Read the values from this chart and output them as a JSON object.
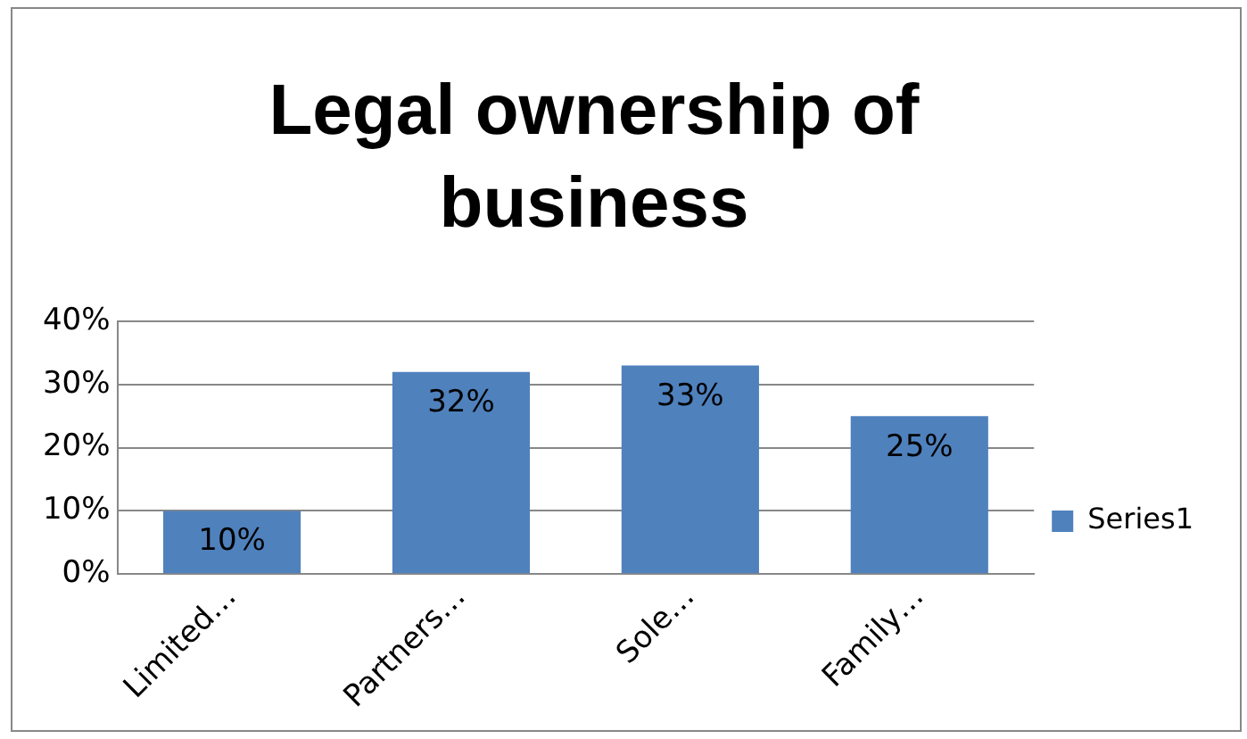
{
  "chart_data": {
    "type": "bar",
    "title": "Legal ownership of business",
    "categories": [
      "Limited…",
      "Partners…",
      "Sole…",
      "Family…"
    ],
    "series": [
      {
        "name": "Series1",
        "color": "#4f81bd",
        "values": [
          10,
          32,
          33,
          25
        ],
        "value_labels": [
          "10%",
          "32%",
          "33%",
          "25%"
        ]
      }
    ],
    "ylim": [
      0,
      40
    ],
    "yticks": [
      {
        "value": 0,
        "label": "0%"
      },
      {
        "value": 10,
        "label": "10%"
      },
      {
        "value": 20,
        "label": "20%"
      },
      {
        "value": 30,
        "label": "30%"
      },
      {
        "value": 40,
        "label": "40%"
      }
    ],
    "grid": "y",
    "legend": "right"
  }
}
